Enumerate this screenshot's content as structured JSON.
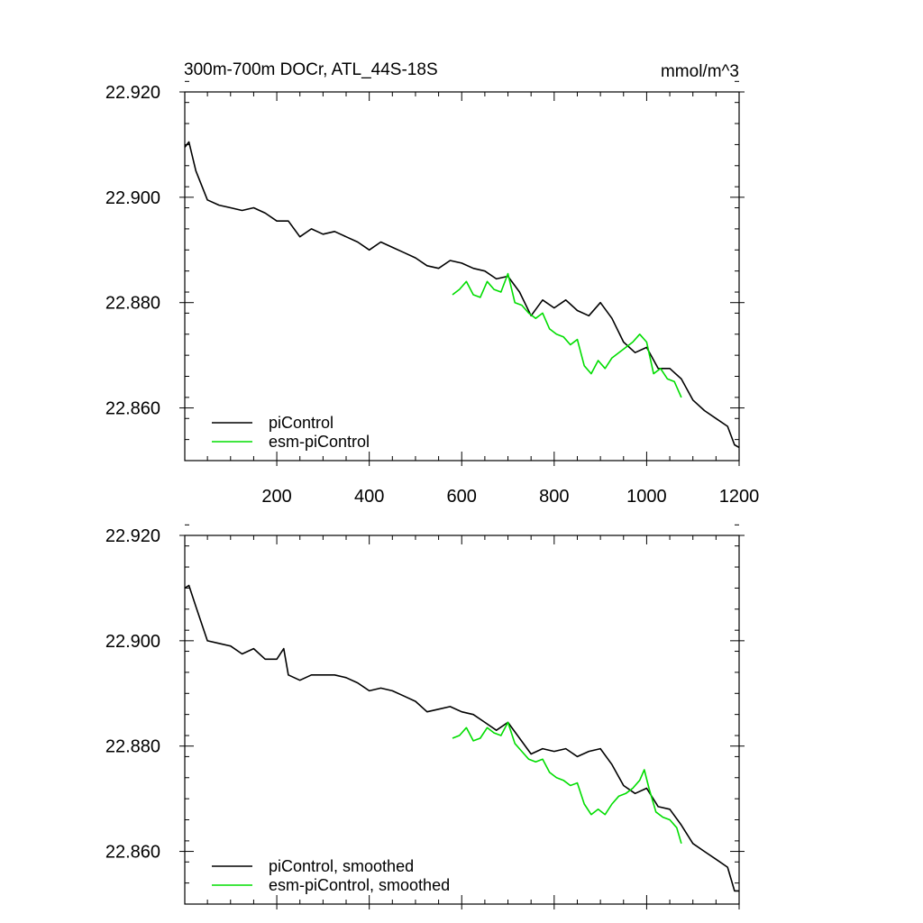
{
  "chart_data": [
    {
      "type": "line",
      "title": "300m-700m DOCr, ATL_44S-18S",
      "units": "mmol/m^3",
      "xlabel": "",
      "ylabel": "",
      "xlim": [
        1,
        1200
      ],
      "ylim": [
        22.85,
        22.92
      ],
      "xticks": [
        200,
        400,
        600,
        800,
        1000,
        1200
      ],
      "xtick_labels": [
        "200",
        "400",
        "600",
        "800",
        "1000",
        "1200"
      ],
      "yticks": [
        22.86,
        22.88,
        22.9,
        22.92
      ],
      "ytick_labels": [
        "22.860",
        "22.880",
        "22.900",
        "22.920"
      ],
      "legend_position": "bottom-left",
      "series": [
        {
          "name": "piControl",
          "color": "#000000",
          "x": [
            1,
            10,
            25,
            50,
            75,
            100,
            125,
            150,
            175,
            200,
            225,
            250,
            275,
            300,
            325,
            350,
            375,
            400,
            425,
            450,
            475,
            500,
            525,
            550,
            575,
            600,
            625,
            650,
            675,
            700,
            725,
            750,
            775,
            800,
            825,
            850,
            875,
            900,
            925,
            950,
            975,
            1000,
            1025,
            1050,
            1075,
            1100,
            1125,
            1150,
            1175,
            1190,
            1200
          ],
          "y": [
            22.9095,
            22.9105,
            22.905,
            22.8995,
            22.8985,
            22.898,
            22.8975,
            22.898,
            22.897,
            22.8955,
            22.8955,
            22.8925,
            22.894,
            22.893,
            22.8935,
            22.8925,
            22.8915,
            22.89,
            22.8915,
            22.8905,
            22.8895,
            22.8885,
            22.887,
            22.8865,
            22.888,
            22.8875,
            22.8865,
            22.886,
            22.8845,
            22.885,
            22.882,
            22.8775,
            22.8805,
            22.879,
            22.8805,
            22.8785,
            22.8775,
            22.88,
            22.877,
            22.8725,
            22.8705,
            22.8715,
            22.8675,
            22.8675,
            22.8655,
            22.8615,
            22.8595,
            22.858,
            22.8565,
            22.853,
            22.8525
          ]
        },
        {
          "name": "esm-piControl",
          "color": "#00dd00",
          "x": [
            580,
            595,
            610,
            625,
            640,
            655,
            670,
            685,
            700,
            715,
            730,
            745,
            760,
            775,
            790,
            805,
            820,
            835,
            850,
            865,
            880,
            895,
            910,
            925,
            940,
            955,
            970,
            985,
            1000,
            1015,
            1030,
            1045,
            1060,
            1075
          ],
          "y": [
            22.8815,
            22.8825,
            22.884,
            22.8815,
            22.881,
            22.884,
            22.8825,
            22.882,
            22.8855,
            22.88,
            22.8795,
            22.878,
            22.877,
            22.878,
            22.875,
            22.874,
            22.8735,
            22.872,
            22.873,
            22.868,
            22.8665,
            22.869,
            22.8675,
            22.8695,
            22.8705,
            22.8715,
            22.8725,
            22.874,
            22.8725,
            22.8665,
            22.8675,
            22.8655,
            22.865,
            22.862
          ]
        }
      ]
    },
    {
      "type": "line",
      "title": "",
      "xlabel": "",
      "ylabel": "",
      "xlim": [
        1,
        1200
      ],
      "ylim": [
        22.85,
        22.92
      ],
      "xticks": [
        200,
        400,
        600,
        800,
        1000,
        1200
      ],
      "yticks": [
        22.86,
        22.88,
        22.9,
        22.92
      ],
      "ytick_labels": [
        "22.860",
        "22.880",
        "22.900",
        "22.920"
      ],
      "legend_position": "bottom-left",
      "series": [
        {
          "name": "piControl, smoothed",
          "color": "#000000",
          "x": [
            1,
            10,
            25,
            50,
            75,
            100,
            125,
            150,
            175,
            200,
            215,
            225,
            250,
            275,
            300,
            325,
            350,
            375,
            400,
            425,
            450,
            475,
            500,
            525,
            550,
            575,
            600,
            625,
            650,
            675,
            700,
            725,
            750,
            775,
            800,
            825,
            850,
            875,
            900,
            925,
            950,
            975,
            1000,
            1025,
            1050,
            1075,
            1100,
            1125,
            1150,
            1175,
            1190,
            1200
          ],
          "y": [
            22.91,
            22.9105,
            22.9065,
            22.9,
            22.8995,
            22.899,
            22.8975,
            22.8985,
            22.8965,
            22.8965,
            22.8985,
            22.8935,
            22.8925,
            22.8935,
            22.8935,
            22.8935,
            22.893,
            22.892,
            22.8905,
            22.891,
            22.8905,
            22.8895,
            22.8885,
            22.8865,
            22.887,
            22.8875,
            22.8865,
            22.886,
            22.8845,
            22.883,
            22.8845,
            22.8815,
            22.8785,
            22.8795,
            22.879,
            22.8795,
            22.878,
            22.879,
            22.8795,
            22.8765,
            22.8725,
            22.871,
            22.872,
            22.8685,
            22.868,
            22.865,
            22.8615,
            22.86,
            22.8585,
            22.857,
            22.8525,
            22.8525
          ]
        },
        {
          "name": "esm-piControl, smoothed",
          "color": "#00dd00",
          "x": [
            580,
            595,
            610,
            625,
            640,
            655,
            670,
            685,
            700,
            715,
            730,
            745,
            760,
            775,
            790,
            805,
            820,
            835,
            850,
            865,
            880,
            895,
            910,
            925,
            940,
            955,
            970,
            985,
            995,
            1005,
            1020,
            1035,
            1050,
            1065,
            1075
          ],
          "y": [
            22.8815,
            22.882,
            22.8835,
            22.881,
            22.8815,
            22.8835,
            22.8825,
            22.882,
            22.8845,
            22.8805,
            22.879,
            22.8775,
            22.877,
            22.8775,
            22.875,
            22.874,
            22.8735,
            22.8725,
            22.873,
            22.869,
            22.867,
            22.868,
            22.867,
            22.869,
            22.8705,
            22.871,
            22.872,
            22.8735,
            22.8755,
            22.872,
            22.8675,
            22.8665,
            22.866,
            22.8645,
            22.8615
          ]
        }
      ]
    }
  ]
}
